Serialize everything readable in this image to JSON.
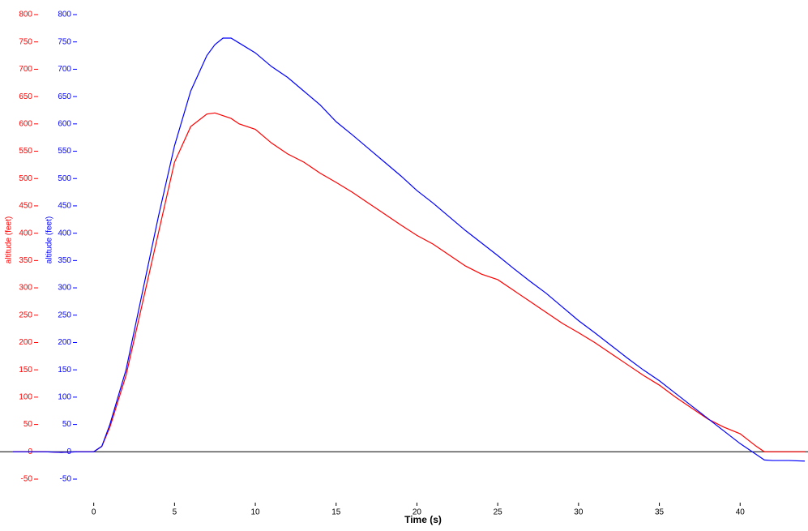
{
  "chart_data": {
    "type": "line",
    "x_label": "Time (s)",
    "y_label": "altitude (feet)",
    "y2_label": "altitude (feet)",
    "x": [
      -5,
      -4,
      -3,
      -2,
      -1,
      0,
      0.5,
      1,
      2,
      3,
      4,
      5,
      6,
      7,
      7.5,
      8,
      8.5,
      9,
      10,
      11,
      12,
      13,
      14,
      15,
      16,
      17,
      18,
      19,
      20,
      21,
      22,
      23,
      24,
      25,
      26,
      27,
      28,
      29,
      30,
      31,
      32,
      33,
      34,
      35,
      36,
      37,
      38,
      39,
      40,
      41,
      41.5,
      42,
      43,
      44
    ],
    "series": [
      {
        "name": "altitude (feet)",
        "color": "#ff0000",
        "values": [
          0,
          0,
          0,
          -1,
          0,
          0,
          10,
          45,
          140,
          270,
          400,
          530,
          595,
          618,
          620,
          615,
          610,
          600,
          590,
          565,
          545,
          530,
          510,
          493,
          475,
          455,
          435,
          415,
          396,
          380,
          360,
          340,
          325,
          315,
          295,
          275,
          255,
          235,
          218,
          200,
          180,
          160,
          140,
          122,
          100,
          80,
          60,
          45,
          33,
          10,
          0,
          0,
          0,
          0
        ]
      },
      {
        "name": "altitude (feet)",
        "color": "#0000ff",
        "axis": "y2",
        "values": [
          0,
          0,
          0,
          -1,
          0,
          0,
          10,
          50,
          150,
          290,
          430,
          560,
          660,
          725,
          745,
          757,
          757,
          748,
          730,
          705,
          685,
          660,
          635,
          604,
          580,
          555,
          530,
          505,
          478,
          455,
          430,
          405,
          382,
          359,
          335,
          312,
          290,
          265,
          240,
          218,
          195,
          172,
          150,
          130,
          107,
          84,
          61,
          38,
          15,
          -5,
          -15,
          -16,
          -16,
          -17
        ]
      }
    ],
    "xlim": [
      -5.8,
      44.2
    ],
    "xticks": [
      0,
      5,
      10,
      15,
      20,
      25,
      30,
      35,
      40
    ],
    "ylim": [
      -50,
      800
    ],
    "yticks": [
      -50,
      0,
      50,
      100,
      150,
      200,
      250,
      300,
      350,
      400,
      450,
      500,
      550,
      600,
      650,
      700,
      750,
      800
    ],
    "y2lim": [
      -50,
      800
    ],
    "y2ticks": [
      -50,
      0,
      50,
      100,
      150,
      200,
      250,
      300,
      350,
      400,
      450,
      500,
      550,
      600,
      650,
      700,
      750,
      800
    ]
  }
}
